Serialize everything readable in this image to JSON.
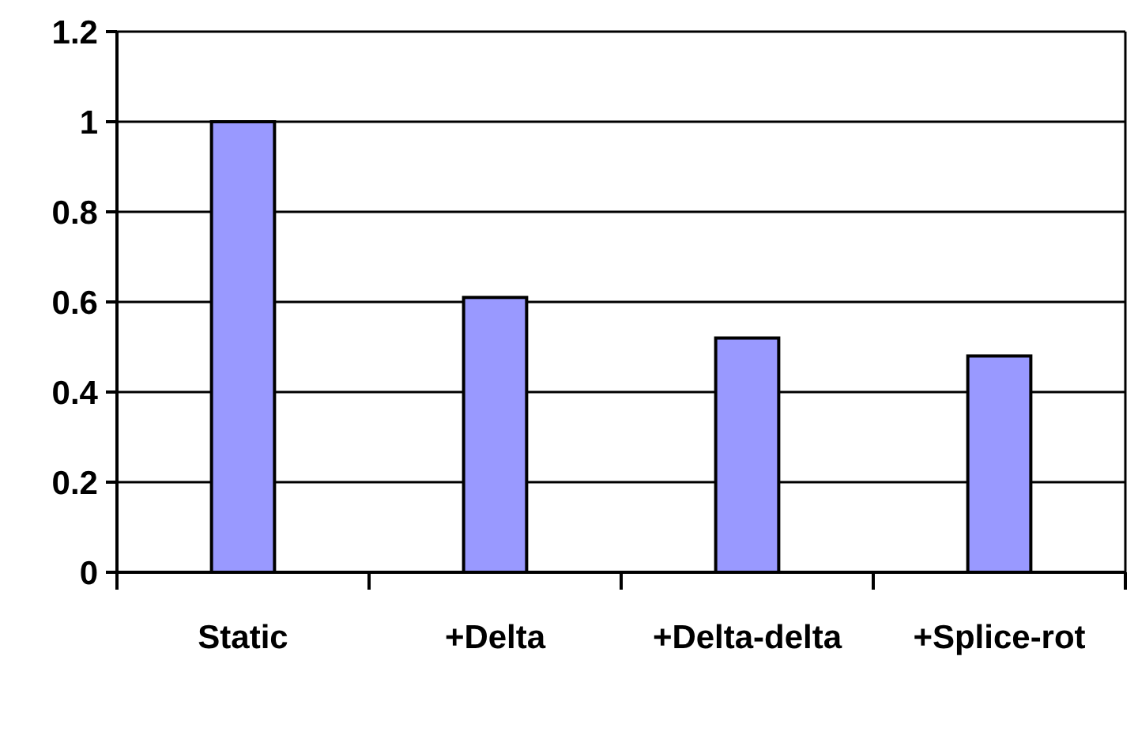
{
  "chart_data": {
    "type": "bar",
    "categories": [
      "Static",
      "+Delta",
      "+Delta-delta",
      "+Splice-rot"
    ],
    "values": [
      1.0,
      0.61,
      0.52,
      0.48
    ],
    "color": "#9999ff",
    "ylim": [
      0,
      1.2
    ],
    "yticks": [
      0,
      0.2,
      0.4,
      0.6,
      0.8,
      1,
      1.2
    ],
    "grid": "y"
  }
}
